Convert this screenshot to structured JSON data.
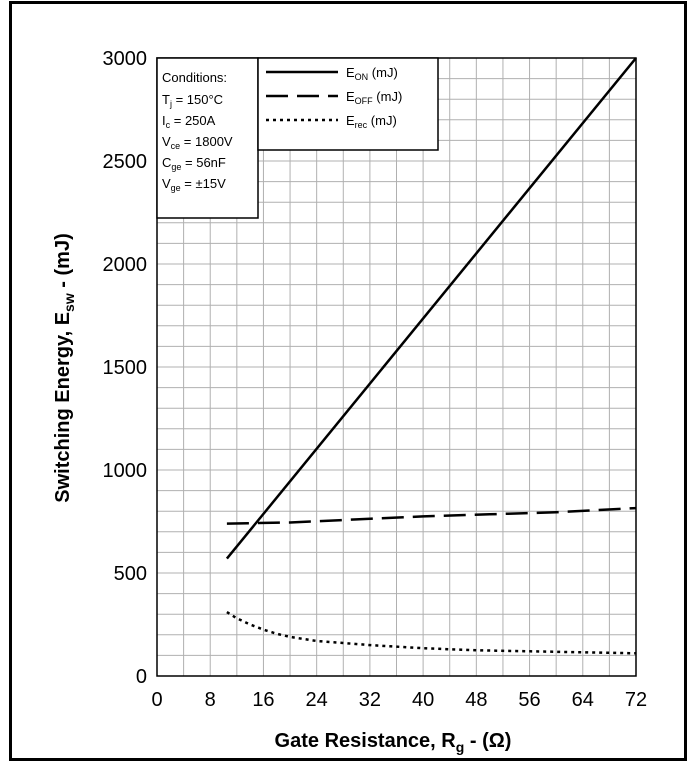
{
  "chart_data": {
    "type": "line",
    "title": "",
    "xlabel": {
      "main": "Gate Resistance, R",
      "sub": "g",
      "tail": " - (Ω)"
    },
    "ylabel": {
      "main": "Switching Energy, E",
      "sub": "sw",
      "tail": " - (mJ)"
    },
    "xlim": [
      0,
      72
    ],
    "ylim": [
      0,
      3000
    ],
    "xticks": [
      0,
      8,
      16,
      24,
      32,
      40,
      48,
      56,
      64,
      72
    ],
    "yticks": [
      0,
      500,
      1000,
      1500,
      2000,
      2500,
      3000
    ],
    "grid": true,
    "conditions": {
      "title": "Conditions:",
      "lines": [
        {
          "main": "T",
          "sub": "j",
          "tail": " = 150°C"
        },
        {
          "main": "I",
          "sub": "c",
          "tail": " = 250A"
        },
        {
          "main": "V",
          "sub": "ce",
          "tail": " = 1800V"
        },
        {
          "main": "C",
          "sub": "ge",
          "tail": " = 56nF"
        },
        {
          "main": "V",
          "sub": "ge",
          "tail": " = ±15V"
        }
      ]
    },
    "series": [
      {
        "name": "EON (mJ)",
        "label": {
          "main": "E",
          "sub": "ON",
          "tail": " (mJ)"
        },
        "dash": "solid",
        "x": [
          10.5,
          72
        ],
        "y": [
          570,
          3000
        ]
      },
      {
        "name": "EOFF (mJ)",
        "label": {
          "main": "E",
          "sub": "OFF",
          "tail": " (mJ)"
        },
        "dash": "long",
        "x": [
          10.5,
          20,
          30,
          40,
          50,
          60,
          72
        ],
        "y": [
          740,
          745,
          760,
          775,
          785,
          795,
          815
        ]
      },
      {
        "name": "Erec (mJ)",
        "label": {
          "main": "E",
          "sub": "rec",
          "tail": " (mJ)"
        },
        "dash": "dotted",
        "x": [
          10.5,
          12,
          14,
          16,
          18,
          20,
          24,
          28,
          32,
          40,
          48,
          56,
          64,
          72
        ],
        "y": [
          310,
          280,
          250,
          225,
          205,
          190,
          170,
          160,
          150,
          135,
          125,
          120,
          115,
          110
        ]
      }
    ]
  }
}
